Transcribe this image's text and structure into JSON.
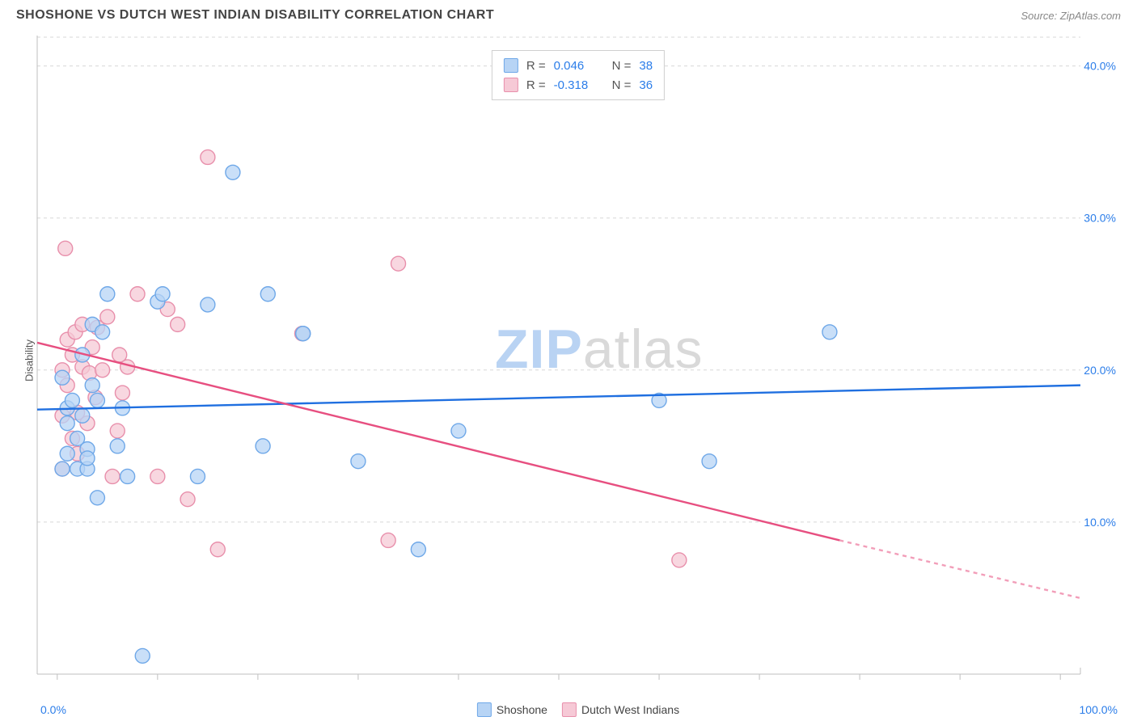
{
  "header": {
    "title": "SHOSHONE VS DUTCH WEST INDIAN DISABILITY CORRELATION CHART",
    "source": "Source: ZipAtlas.com"
  },
  "axes": {
    "y_label": "Disability",
    "x_min_label": "0.0%",
    "x_max_label": "100.0%",
    "y_ticks": [
      {
        "value": 10,
        "label": "10.0%"
      },
      {
        "value": 20,
        "label": "20.0%"
      },
      {
        "value": 30,
        "label": "30.0%"
      },
      {
        "value": 40,
        "label": "40.0%"
      }
    ],
    "x_ticks": [
      0,
      10,
      20,
      30,
      40,
      50,
      60,
      70,
      80,
      90,
      100
    ],
    "y_domain": [
      0,
      42
    ],
    "x_domain": [
      -2,
      102
    ]
  },
  "watermark": {
    "zip": "ZIP",
    "atlas": "atlas"
  },
  "series": {
    "shoshone": {
      "label": "Shoshone",
      "color_fill": "#b7d4f5",
      "color_stroke": "#6fa8e8",
      "line_color": "#1f6fe0",
      "r_label": "R =",
      "r_value": "0.046",
      "n_label": "N =",
      "n_value": "38",
      "trend": {
        "x1": -2,
        "y1": 17.4,
        "x2": 102,
        "y2": 19.0
      },
      "points": [
        [
          0.5,
          13.5
        ],
        [
          1,
          14.5
        ],
        [
          1,
          16.5
        ],
        [
          1,
          17.5
        ],
        [
          1.5,
          18
        ],
        [
          0.5,
          19.5
        ],
        [
          2,
          13.5
        ],
        [
          2,
          15.5
        ],
        [
          2.5,
          17
        ],
        [
          2.5,
          21
        ],
        [
          3,
          13.5
        ],
        [
          3,
          14.8
        ],
        [
          3.5,
          19
        ],
        [
          3.5,
          23
        ],
        [
          4,
          11.6
        ],
        [
          4,
          18
        ],
        [
          4.5,
          22.5
        ],
        [
          5,
          25
        ],
        [
          6,
          15
        ],
        [
          6.5,
          17.5
        ],
        [
          7,
          13
        ],
        [
          8.5,
          1.2
        ],
        [
          10,
          24.5
        ],
        [
          10.5,
          25
        ],
        [
          14,
          13
        ],
        [
          15,
          24.3
        ],
        [
          17.5,
          33
        ],
        [
          20.5,
          15
        ],
        [
          21,
          25
        ],
        [
          24.5,
          22.4
        ],
        [
          30,
          14
        ],
        [
          36,
          8.2
        ],
        [
          40,
          16
        ],
        [
          60,
          18
        ],
        [
          65,
          14
        ],
        [
          77,
          22.5
        ],
        [
          24.5,
          22.4
        ],
        [
          3,
          14.2
        ]
      ]
    },
    "dutch": {
      "label": "Dutch West Indians",
      "color_fill": "#f6c9d6",
      "color_stroke": "#e88fab",
      "line_color": "#e74f80",
      "r_label": "R =",
      "r_value": "-0.318",
      "n_label": "N =",
      "n_value": "36",
      "trend": {
        "x1": -2,
        "y1": 21.8,
        "x2": 78,
        "y2": 8.8
      },
      "trend_dash": {
        "x1": 78,
        "y1": 8.8,
        "x2": 102,
        "y2": 5.0
      },
      "points": [
        [
          0.5,
          13.5
        ],
        [
          0.5,
          17
        ],
        [
          0.5,
          20
        ],
        [
          0.8,
          28
        ],
        [
          1,
          19
        ],
        [
          1,
          22
        ],
        [
          1.5,
          15.5
        ],
        [
          1.5,
          21
        ],
        [
          1.8,
          22.5
        ],
        [
          2,
          14.5
        ],
        [
          2,
          17.2
        ],
        [
          2.5,
          20.2
        ],
        [
          2.5,
          23
        ],
        [
          3,
          16.5
        ],
        [
          3.2,
          19.8
        ],
        [
          3.5,
          21.5
        ],
        [
          3.8,
          18.2
        ],
        [
          4,
          22.8
        ],
        [
          4.5,
          20
        ],
        [
          5,
          23.5
        ],
        [
          5.5,
          13
        ],
        [
          6,
          16
        ],
        [
          6.2,
          21
        ],
        [
          7,
          20.2
        ],
        [
          8,
          25
        ],
        [
          10,
          13
        ],
        [
          11,
          24
        ],
        [
          12,
          23
        ],
        [
          13,
          11.5
        ],
        [
          15,
          34
        ],
        [
          16,
          8.2
        ],
        [
          24.4,
          22.4
        ],
        [
          33,
          8.8
        ],
        [
          34,
          27
        ],
        [
          62,
          7.5
        ],
        [
          6.5,
          18.5
        ]
      ]
    }
  },
  "style": {
    "point_radius": 9,
    "grid_color": "#d7d7d7",
    "axis_color": "#bfbfbf",
    "tick_label_color": "#2b7de9",
    "plot_bg": "#ffffff"
  }
}
